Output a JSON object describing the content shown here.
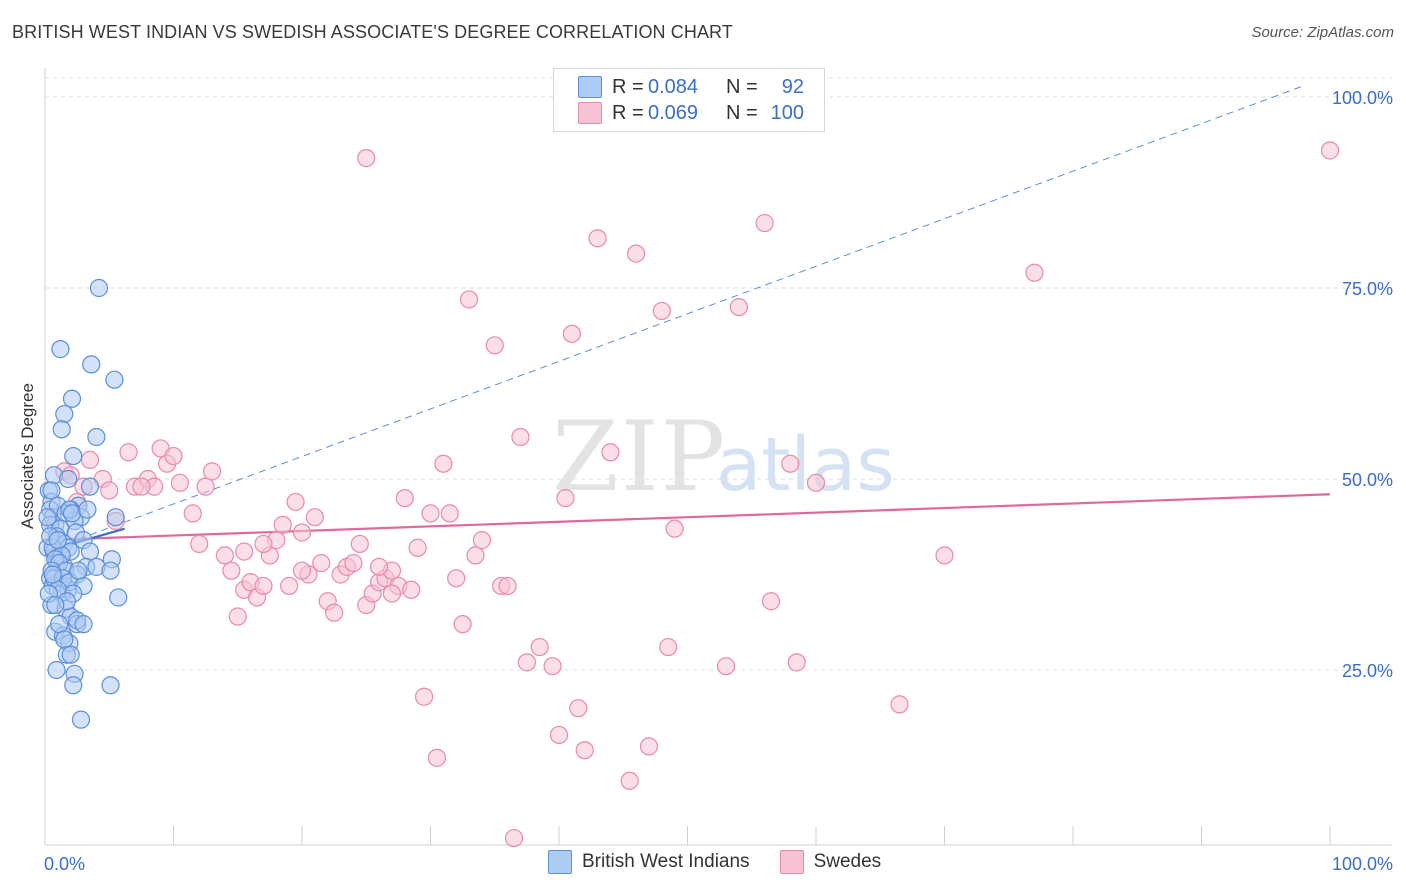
{
  "header": {
    "title": "BRITISH WEST INDIAN VS SWEDISH ASSOCIATE'S DEGREE CORRELATION CHART",
    "source": "Source: ZipAtlas.com"
  },
  "watermark": {
    "zip": "ZIP",
    "atlas": "atlas"
  },
  "legend_top": {
    "rows": [
      {
        "r_label": "R =",
        "r_value": "0.084",
        "n_label": "N =",
        "n_value": "92"
      },
      {
        "r_label": "R =",
        "r_value": "0.069",
        "n_label": "N =",
        "n_value": "100"
      }
    ]
  },
  "legend_bottom": {
    "series1": "British West Indians",
    "series2": "Swedes"
  },
  "colors": {
    "blue_fill": "#aecbf2",
    "blue_stroke": "#5b8fd8",
    "blue_line": "#3a6fd0",
    "pink_fill": "#f7c3d4",
    "pink_stroke": "#e88aa9",
    "pink_line": "#e0699a",
    "axis_text": "#3a6fc4",
    "grid": "#dcdcdc"
  },
  "chart_data": {
    "type": "scatter",
    "title": "BRITISH WEST INDIAN VS SWEDISH ASSOCIATE'S DEGREE CORRELATION CHART",
    "xlabel": "",
    "ylabel": "Associate's Degree",
    "xlim": [
      0,
      100
    ],
    "ylim": [
      0,
      102
    ],
    "x_ticks": [
      {
        "value": 0,
        "label": "0.0%"
      },
      {
        "value": 100,
        "label": "100.0%"
      }
    ],
    "y_ticks": [
      {
        "value": 25,
        "label": "25.0%"
      },
      {
        "value": 50,
        "label": "50.0%"
      },
      {
        "value": 75,
        "label": "75.0%"
      },
      {
        "value": 100,
        "label": "100.0%"
      }
    ],
    "series": [
      {
        "name": "British West Indians",
        "r": 0.084,
        "n": 92,
        "trend": {
          "x0": 0,
          "y0": 40.5,
          "x1": 6.2,
          "y1": 43.5
        },
        "dashed_trend": {
          "x0": 0,
          "y0": 40.5,
          "x1": 98,
          "y1": 101.5
        },
        "points": [
          [
            0.3,
            48.5
          ],
          [
            0.5,
            47.0
          ],
          [
            0.4,
            46.0
          ],
          [
            0.6,
            45.0
          ],
          [
            0.8,
            44.0
          ],
          [
            1.0,
            42.0
          ],
          [
            0.2,
            41.0
          ],
          [
            0.7,
            40.5
          ],
          [
            1.2,
            40.0
          ],
          [
            0.9,
            39.0
          ],
          [
            1.5,
            38.5
          ],
          [
            0.4,
            37.0
          ],
          [
            1.1,
            36.5
          ],
          [
            0.6,
            36.0
          ],
          [
            1.8,
            35.5
          ],
          [
            1.3,
            35.0
          ],
          [
            0.5,
            33.5
          ],
          [
            1.6,
            33.0
          ],
          [
            2.0,
            32.0
          ],
          [
            0.8,
            30.0
          ],
          [
            2.5,
            31.0
          ],
          [
            1.4,
            29.5
          ],
          [
            1.9,
            28.5
          ],
          [
            1.7,
            27.0
          ],
          [
            0.9,
            25.0
          ],
          [
            2.3,
            24.5
          ],
          [
            2.2,
            23.0
          ],
          [
            5.1,
            23.0
          ],
          [
            2.8,
            18.5
          ],
          [
            1.2,
            67.0
          ],
          [
            3.6,
            65.0
          ],
          [
            5.4,
            63.0
          ],
          [
            2.1,
            60.5
          ],
          [
            1.5,
            58.5
          ],
          [
            1.3,
            56.5
          ],
          [
            4.0,
            55.5
          ],
          [
            2.2,
            53.0
          ],
          [
            0.7,
            50.5
          ],
          [
            1.8,
            50.0
          ],
          [
            3.5,
            49.0
          ],
          [
            0.5,
            48.5
          ],
          [
            2.6,
            46.5
          ],
          [
            1.0,
            46.5
          ],
          [
            2.0,
            46.0
          ],
          [
            1.6,
            45.5
          ],
          [
            2.8,
            45.0
          ],
          [
            5.5,
            45.0
          ],
          [
            2.3,
            44.5
          ],
          [
            0.4,
            44.0
          ],
          [
            1.2,
            43.5
          ],
          [
            2.4,
            43.0
          ],
          [
            0.9,
            42.5
          ],
          [
            3.0,
            42.0
          ],
          [
            1.5,
            41.5
          ],
          [
            1.8,
            41.0
          ],
          [
            0.6,
            41.0
          ],
          [
            2.0,
            40.5
          ],
          [
            1.3,
            40.0
          ],
          [
            3.5,
            40.5
          ],
          [
            0.8,
            39.5
          ],
          [
            1.1,
            39.0
          ],
          [
            5.2,
            39.5
          ],
          [
            3.2,
            38.5
          ],
          [
            1.6,
            38.0
          ],
          [
            0.5,
            38.0
          ],
          [
            4.0,
            38.5
          ],
          [
            5.1,
            38.0
          ],
          [
            2.5,
            37.5
          ],
          [
            0.7,
            37.0
          ],
          [
            1.4,
            37.0
          ],
          [
            1.9,
            36.5
          ],
          [
            3.0,
            36.0
          ],
          [
            1.0,
            35.5
          ],
          [
            0.3,
            35.0
          ],
          [
            2.2,
            35.0
          ],
          [
            5.7,
            34.5
          ],
          [
            1.7,
            34.0
          ],
          [
            0.8,
            33.5
          ],
          [
            2.5,
            31.5
          ],
          [
            1.1,
            31.0
          ],
          [
            3.0,
            31.0
          ],
          [
            1.5,
            29.0
          ],
          [
            2.0,
            27.0
          ],
          [
            4.2,
            75.0
          ],
          [
            0.4,
            42.5
          ],
          [
            1.0,
            42.0
          ],
          [
            2.6,
            38.0
          ],
          [
            0.6,
            37.5
          ],
          [
            1.9,
            46.0
          ],
          [
            2.1,
            45.5
          ],
          [
            0.2,
            45.0
          ],
          [
            3.3,
            46.0
          ]
        ]
      },
      {
        "name": "Swedes",
        "r": 0.069,
        "n": 100,
        "trend": {
          "x0": 0,
          "y0": 42.0,
          "x1": 100,
          "y1": 48.0
        },
        "points": [
          [
            1.5,
            51.0
          ],
          [
            2.0,
            50.5
          ],
          [
            3.5,
            52.5
          ],
          [
            4.5,
            50.0
          ],
          [
            5.0,
            48.5
          ],
          [
            6.5,
            53.5
          ],
          [
            7.0,
            49.0
          ],
          [
            8.0,
            50.0
          ],
          [
            8.5,
            49.0
          ],
          [
            9.0,
            54.0
          ],
          [
            9.5,
            52.0
          ],
          [
            10.0,
            53.0
          ],
          [
            10.5,
            49.5
          ],
          [
            11.5,
            45.5
          ],
          [
            12.0,
            41.5
          ],
          [
            12.5,
            49.0
          ],
          [
            13.0,
            51.0
          ],
          [
            14.0,
            40.0
          ],
          [
            14.5,
            38.0
          ],
          [
            15.0,
            32.0
          ],
          [
            15.5,
            35.5
          ],
          [
            16.0,
            36.5
          ],
          [
            16.5,
            34.5
          ],
          [
            17.0,
            36.0
          ],
          [
            17.5,
            40.0
          ],
          [
            18.0,
            42.0
          ],
          [
            18.5,
            44.0
          ],
          [
            19.0,
            36.0
          ],
          [
            19.5,
            47.0
          ],
          [
            20.0,
            43.0
          ],
          [
            20.5,
            37.5
          ],
          [
            21.0,
            45.0
          ],
          [
            21.5,
            39.0
          ],
          [
            22.0,
            34.0
          ],
          [
            22.5,
            32.5
          ],
          [
            23.0,
            37.5
          ],
          [
            23.5,
            38.5
          ],
          [
            24.0,
            39.0
          ],
          [
            24.5,
            41.5
          ],
          [
            25.0,
            33.5
          ],
          [
            25.5,
            35.0
          ],
          [
            26.0,
            36.5
          ],
          [
            26.5,
            37.0
          ],
          [
            27.0,
            38.0
          ],
          [
            27.5,
            36.0
          ],
          [
            28.0,
            47.5
          ],
          [
            28.5,
            35.5
          ],
          [
            29.0,
            41.0
          ],
          [
            29.5,
            21.5
          ],
          [
            30.0,
            45.5
          ],
          [
            30.5,
            13.5
          ],
          [
            31.0,
            52.0
          ],
          [
            31.5,
            45.5
          ],
          [
            32.0,
            37.0
          ],
          [
            32.5,
            31.0
          ],
          [
            33.0,
            73.5
          ],
          [
            33.5,
            40.0
          ],
          [
            34.0,
            42.0
          ],
          [
            35.0,
            67.5
          ],
          [
            35.5,
            36.0
          ],
          [
            36.0,
            36.0
          ],
          [
            36.5,
            3.0
          ],
          [
            37.0,
            55.5
          ],
          [
            37.5,
            26.0
          ],
          [
            38.5,
            28.0
          ],
          [
            39.5,
            25.5
          ],
          [
            40.0,
            16.5
          ],
          [
            40.5,
            47.5
          ],
          [
            41.0,
            69.0
          ],
          [
            41.5,
            20.0
          ],
          [
            42.0,
            14.5
          ],
          [
            43.0,
            81.5
          ],
          [
            44.0,
            53.5
          ],
          [
            45.5,
            10.5
          ],
          [
            46.0,
            79.5
          ],
          [
            47.0,
            15.0
          ],
          [
            48.0,
            72.0
          ],
          [
            48.5,
            28.0
          ],
          [
            49.0,
            43.5
          ],
          [
            53.0,
            25.5
          ],
          [
            54.0,
            72.5
          ],
          [
            56.5,
            34.0
          ],
          [
            56.0,
            83.5
          ],
          [
            58.0,
            52.0
          ],
          [
            58.5,
            26.0
          ],
          [
            60.0,
            49.5
          ],
          [
            66.5,
            20.5
          ],
          [
            70.0,
            40.0
          ],
          [
            77.0,
            77.0
          ],
          [
            100.0,
            93.0
          ],
          [
            25.0,
            92.0
          ],
          [
            5.5,
            44.5
          ],
          [
            7.5,
            49.0
          ],
          [
            3.0,
            49.0
          ],
          [
            2.5,
            47.0
          ],
          [
            15.5,
            40.5
          ],
          [
            17.0,
            41.5
          ],
          [
            26.0,
            38.5
          ],
          [
            20.0,
            38.0
          ],
          [
            27.0,
            35.0
          ]
        ]
      }
    ]
  }
}
